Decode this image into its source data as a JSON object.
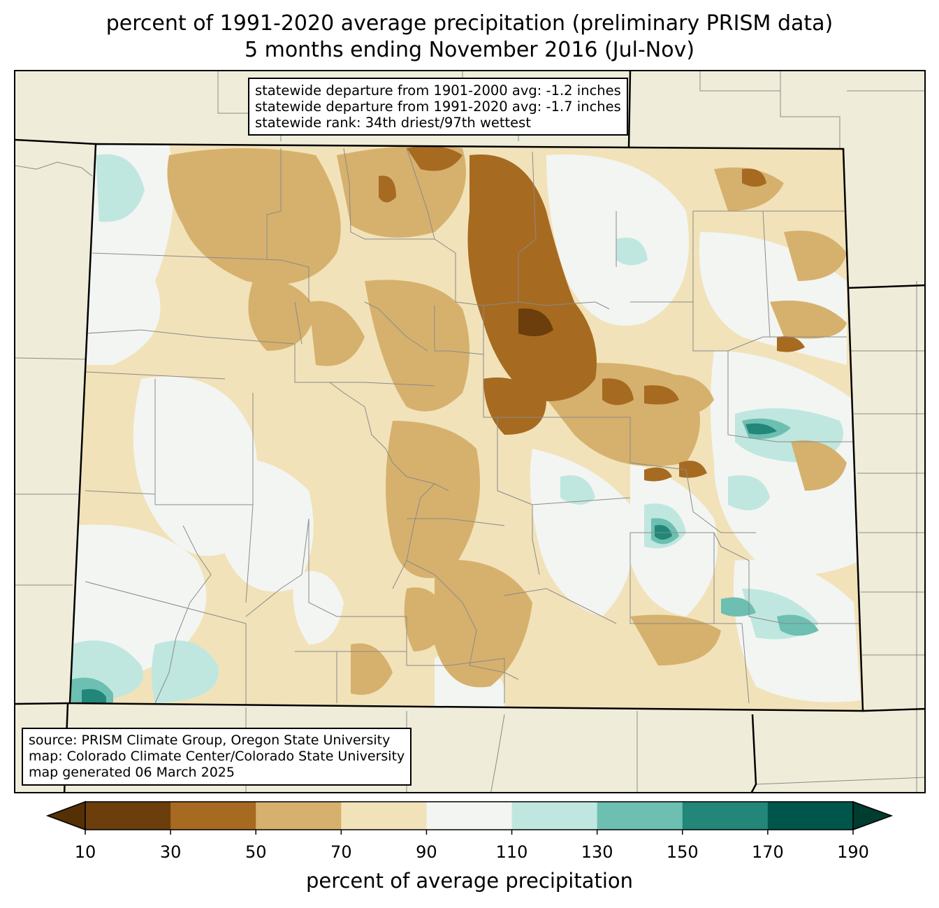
{
  "title": {
    "line1": "percent of 1991-2020 average precipitation (preliminary PRISM data)",
    "line2": "5 months ending November 2016 (Jul-Nov)"
  },
  "stats_box": {
    "line1": "statewide departure from 1901-2000 avg: -1.2 inches",
    "line2": "statewide departure from 1991-2020 avg: -1.7 inches",
    "line3": "statewide rank: 34th driest/97th wettest"
  },
  "credit_box": {
    "line1": "source: PRISM Climate Group, Oregon State University",
    "line2": "map: Colorado Climate Center/Colorado State University",
    "line3": "map generated 06 March 2025"
  },
  "colorbar": {
    "label": "percent of average precipitation",
    "ticks": [
      "10",
      "30",
      "50",
      "70",
      "90",
      "110",
      "130",
      "150",
      "170",
      "190"
    ],
    "under_color": "#543005",
    "over_color": "#003c30",
    "colors": [
      "#6b3e0b",
      "#a76a21",
      "#d6b16d",
      "#f1e2b9",
      "#f3f5f3",
      "#bfe7df",
      "#6dbfb1",
      "#228679",
      "#01564b"
    ]
  },
  "map": {
    "background_color": "#efedd9",
    "state_fill_dominant": "#f1e2b9"
  }
}
